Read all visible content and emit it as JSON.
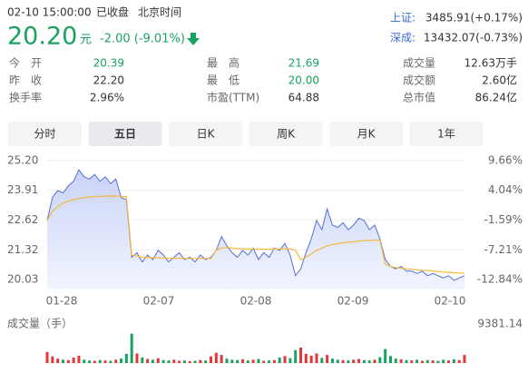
{
  "header": {
    "datetime": "02-10 15:00:00",
    "status": "已收盘",
    "timezone": "北京时间",
    "price": "20.20",
    "currency": "元",
    "change": "-2.00 (-9.01%)",
    "indices": [
      {
        "name": "上证:",
        "value": "3485.91(+0.17%)"
      },
      {
        "name": "深成:",
        "value": "13432.07(-0.73%)"
      }
    ]
  },
  "stats": [
    [
      {
        "label": "今　开",
        "value": "20.39"
      },
      {
        "label": "最　高",
        "value": "21.69"
      },
      {
        "label": "成交量",
        "value": "12.63万手"
      }
    ],
    [
      {
        "label": "昨　收",
        "value": "22.20"
      },
      {
        "label": "最　低",
        "value": "20.00"
      },
      {
        "label": "成交额",
        "value": "2.60亿"
      }
    ],
    [
      {
        "label": "换手率",
        "value": "2.96%"
      },
      {
        "label": "市盈(TTM)",
        "value": "64.88"
      },
      {
        "label": "总市值",
        "value": "86.24亿"
      }
    ]
  ],
  "tabs": [
    "分时",
    "五日",
    "日K",
    "周K",
    "月K",
    "1年"
  ],
  "chart": {
    "type": "line",
    "ylim": [
      19.6,
      25.2
    ],
    "yticks": [
      {
        "value": 25.2,
        "label": "25.20"
      },
      {
        "value": 23.91,
        "label": "23.91"
      },
      {
        "value": 22.62,
        "label": "22.62"
      },
      {
        "value": 21.32,
        "label": "21.32"
      },
      {
        "value": 20.03,
        "label": "20.03"
      }
    ],
    "y2lim": [
      -14.71,
      9.66
    ],
    "y2ticks": [
      {
        "value": 9.66,
        "label": "9.66%"
      },
      {
        "value": 4.04,
        "label": "4.04%"
      },
      {
        "value": -1.59,
        "label": "-1.59%"
      },
      {
        "value": -7.21,
        "label": "-7.21%"
      },
      {
        "value": -12.84,
        "label": "-12.84%"
      }
    ],
    "grid": true,
    "price_color": "#5470d6",
    "avg_color": "#f5b93c",
    "up_color": "#e0383b",
    "down_color": "#1aa260",
    "volume_label": "成交量（手）",
    "volume_max": 9381.14,
    "days": [
      {
        "label": "01-28",
        "price": [
          22.6,
          23.6,
          23.9,
          23.8,
          24.1,
          24.3,
          24.8,
          24.5,
          24.4,
          24.6,
          24.3,
          24.5,
          24.2,
          24.4,
          23.6,
          23.5
        ],
        "avg": [
          22.6,
          23.0,
          23.2,
          23.35,
          23.45,
          23.5,
          23.55,
          23.6,
          23.62,
          23.64,
          23.65,
          23.66,
          23.66,
          23.66,
          23.65,
          23.64
        ],
        "volume": [
          3000,
          1800,
          1200,
          900,
          800,
          1500,
          2000,
          900,
          700,
          600,
          800,
          700,
          600,
          900,
          1200,
          2500
        ]
      },
      {
        "label": "02-07",
        "price": [
          21.0,
          21.2,
          20.8,
          21.1,
          20.9,
          21.3,
          21.1,
          20.8,
          21.0,
          21.2,
          20.9,
          21.0,
          20.8,
          21.1,
          20.9,
          21.0
        ],
        "avg": [
          21.1,
          21.05,
          21.0,
          21.0,
          20.98,
          20.98,
          20.97,
          20.96,
          20.96,
          20.96,
          20.95,
          20.95,
          20.95,
          20.95,
          20.95,
          20.95
        ],
        "volume": [
          8000,
          2600,
          1500,
          1100,
          900,
          1300,
          800,
          700,
          900,
          600,
          700,
          500,
          600,
          800,
          700,
          1800
        ]
      },
      {
        "label": "02-08",
        "price": [
          21.3,
          21.9,
          21.5,
          21.2,
          21.0,
          21.3,
          21.1,
          21.4,
          20.9,
          21.2,
          21.0,
          21.4,
          21.3,
          21.6,
          21.1,
          20.2
        ],
        "avg": [
          21.3,
          21.4,
          21.42,
          21.4,
          21.38,
          21.37,
          21.36,
          21.36,
          21.35,
          21.35,
          21.35,
          21.36,
          21.36,
          21.37,
          21.37,
          21.3
        ],
        "volume": [
          2800,
          2200,
          1200,
          900,
          800,
          1000,
          700,
          900,
          1100,
          600,
          700,
          800,
          1500,
          1900,
          1300,
          3500
        ]
      },
      {
        "label": "02-09",
        "price": [
          20.5,
          21.2,
          21.8,
          22.6,
          22.2,
          23.1,
          22.4,
          22.3,
          22.5,
          22.2,
          22.4,
          22.7,
          22.6,
          22.2,
          22.4,
          21.8
        ],
        "avg": [
          20.9,
          21.0,
          21.15,
          21.3,
          21.4,
          21.5,
          21.55,
          21.6,
          21.63,
          21.66,
          21.68,
          21.7,
          21.72,
          21.73,
          21.75,
          21.75
        ],
        "volume": [
          4200,
          2500,
          2000,
          2600,
          1400,
          2200,
          1200,
          900,
          800,
          700,
          900,
          1100,
          800,
          700,
          900,
          1600
        ]
      },
      {
        "label": "02-10",
        "price": [
          20.9,
          20.6,
          20.5,
          20.6,
          20.4,
          20.4,
          20.3,
          20.4,
          20.2,
          20.3,
          20.2,
          20.1,
          20.2,
          20.0,
          20.1,
          20.2
        ],
        "avg": [
          20.7,
          20.6,
          20.55,
          20.52,
          20.5,
          20.48,
          20.45,
          20.44,
          20.42,
          20.4,
          20.38,
          20.36,
          20.35,
          20.33,
          20.32,
          20.3
        ],
        "volume": [
          3800,
          1900,
          1200,
          1000,
          800,
          700,
          900,
          600,
          800,
          700,
          600,
          900,
          700,
          1000,
          800,
          2200
        ]
      }
    ]
  }
}
